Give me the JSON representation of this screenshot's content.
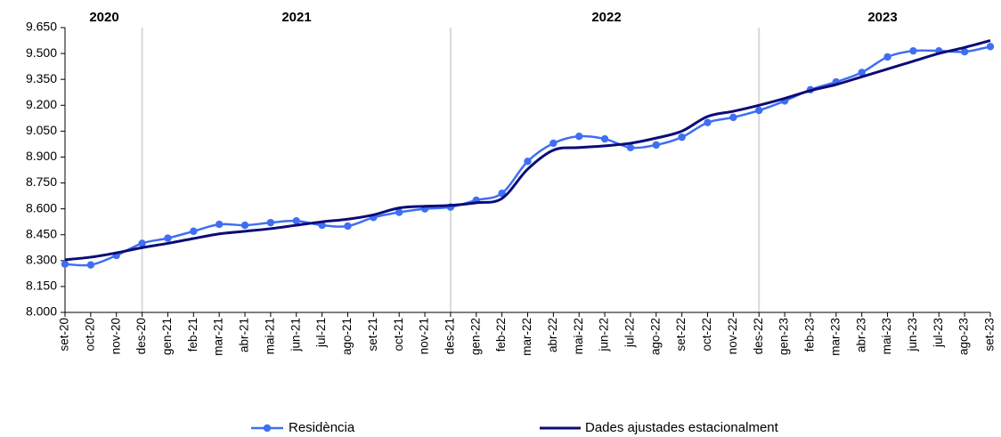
{
  "chart_data": {
    "type": "line",
    "categories": [
      "set-20",
      "oct-20",
      "nov-20",
      "des-20",
      "gen-21",
      "feb-21",
      "mar-21",
      "abr-21",
      "mai-21",
      "jun-21",
      "jul-21",
      "ago-21",
      "set-21",
      "oct-21",
      "nov-21",
      "des-21",
      "gen-22",
      "feb-22",
      "mar-22",
      "abr-22",
      "mai-22",
      "jun-22",
      "jul-22",
      "ago-22",
      "set-22",
      "oct-22",
      "nov-22",
      "des-22",
      "gen-23",
      "feb-23",
      "mar-23",
      "abr-23",
      "mai-23",
      "jun-23",
      "jul-23",
      "ago-23",
      "set-23"
    ],
    "series": [
      {
        "name": "Residència",
        "color": "#3f6ef2",
        "markers": true,
        "values": [
          8280,
          8275,
          8330,
          8400,
          8430,
          8470,
          8510,
          8505,
          8520,
          8530,
          8505,
          8500,
          8550,
          8580,
          8600,
          8610,
          8650,
          8690,
          8875,
          8980,
          9020,
          9005,
          8955,
          8970,
          9015,
          9100,
          9130,
          9170,
          9225,
          9290,
          9335,
          9390,
          9480,
          9515,
          9515,
          9510,
          9540
        ]
      },
      {
        "name": "Dades ajustades estacionalment",
        "color": "#0b0b78",
        "markers": false,
        "values": [
          8305,
          8320,
          8345,
          8375,
          8400,
          8428,
          8455,
          8470,
          8485,
          8505,
          8525,
          8540,
          8565,
          8605,
          8615,
          8620,
          8635,
          8660,
          8830,
          8940,
          8955,
          8965,
          8980,
          9010,
          9050,
          9135,
          9165,
          9200,
          9240,
          9285,
          9320,
          9365,
          9410,
          9455,
          9500,
          9535,
          9575
        ]
      }
    ],
    "ylim": [
      8000,
      9650
    ],
    "yticks": [
      {
        "value": 8000,
        "label": "8.000"
      },
      {
        "value": 8150,
        "label": "8.150"
      },
      {
        "value": 8300,
        "label": "8.300"
      },
      {
        "value": 8450,
        "label": "8.450"
      },
      {
        "value": 8600,
        "label": "8.600"
      },
      {
        "value": 8750,
        "label": "8.750"
      },
      {
        "value": 8900,
        "label": "8.900"
      },
      {
        "value": 9050,
        "label": "9.050"
      },
      {
        "value": 9200,
        "label": "9.200"
      },
      {
        "value": 9350,
        "label": "9.350"
      },
      {
        "value": 9500,
        "label": "9.500"
      },
      {
        "value": 9650,
        "label": "9.650"
      }
    ],
    "annotations": [
      "2020",
      "2021",
      "2022",
      "2023"
    ],
    "grid": false,
    "legend": "bottom"
  }
}
